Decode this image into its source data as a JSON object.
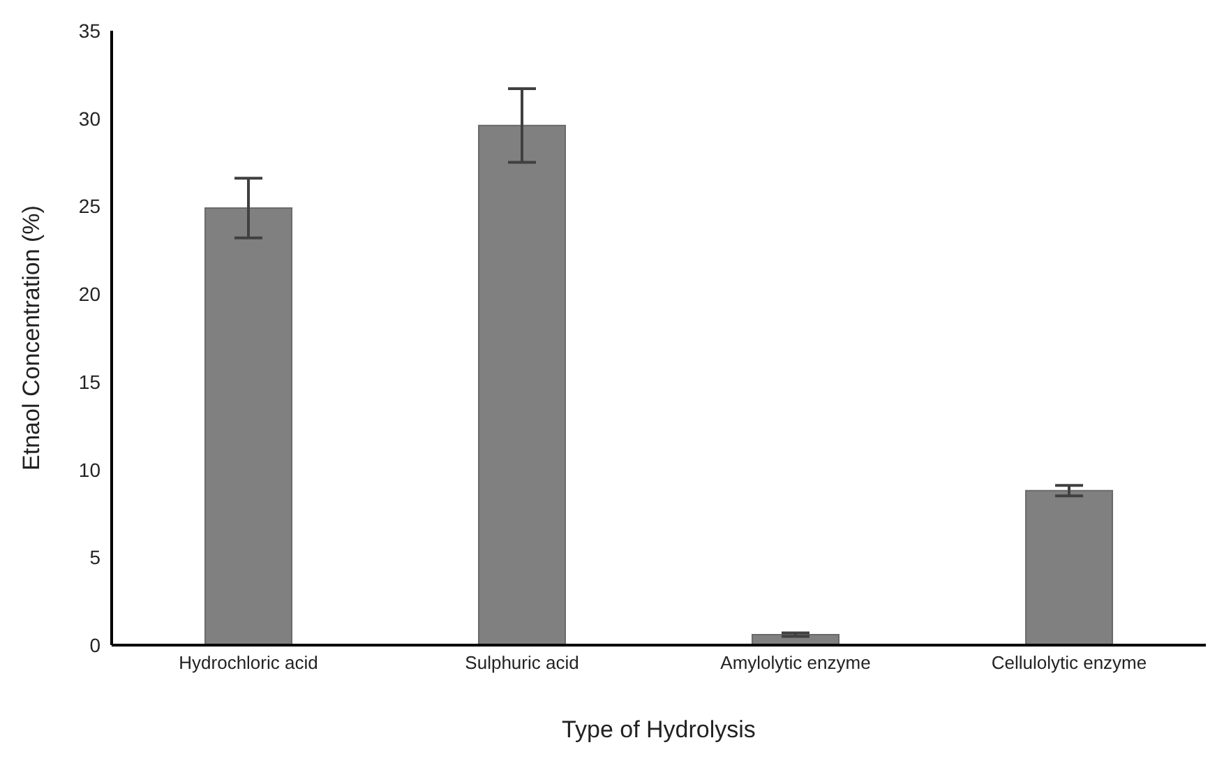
{
  "chart_data": {
    "type": "bar",
    "xlabel": "Type of Hydrolysis",
    "ylabel": "Etnaol Concentration (%)",
    "categories": [
      "Hydrochloric acid",
      "Sulphuric acid",
      "Amylolytic enzyme",
      "Cellulolytic enzyme"
    ],
    "values": [
      24.9,
      29.6,
      0.6,
      8.8
    ],
    "errors": [
      1.7,
      2.1,
      0.1,
      0.3
    ],
    "color": "#808080",
    "ylim": [
      0,
      35
    ],
    "yticks": [
      0,
      5,
      10,
      15,
      20,
      25,
      30,
      35
    ],
    "grid": false,
    "legend": false
  }
}
